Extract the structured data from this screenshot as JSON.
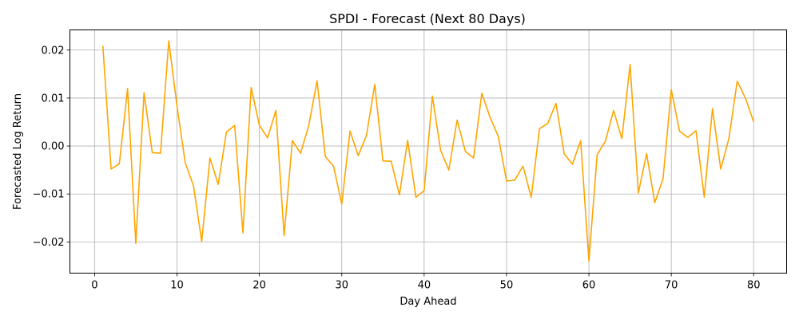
{
  "chart_data": {
    "type": "line",
    "title": "SPDI - Forecast (Next 80 Days)",
    "xlabel": "Day Ahead",
    "ylabel": "Forecasted Log Return",
    "xlim": [
      -3,
      84
    ],
    "ylim": [
      -0.0265,
      0.0242
    ],
    "grid": true,
    "x_ticks": [
      0,
      10,
      20,
      30,
      40,
      50,
      60,
      70,
      80
    ],
    "x_tick_labels": [
      "0",
      "10",
      "20",
      "30",
      "40",
      "50",
      "60",
      "70",
      "80"
    ],
    "y_ticks": [
      -0.02,
      -0.01,
      0.0,
      0.01,
      0.02
    ],
    "y_tick_labels": [
      "−0.02",
      "−0.01",
      "0.00",
      "0.01",
      "0.02"
    ],
    "series": [
      {
        "color": "#ffa500",
        "x": [
          1,
          2,
          3,
          4,
          5,
          6,
          7,
          8,
          9,
          10,
          11,
          12,
          13,
          14,
          15,
          16,
          17,
          18,
          19,
          20,
          21,
          22,
          23,
          24,
          25,
          26,
          27,
          28,
          29,
          30,
          31,
          32,
          33,
          34,
          35,
          36,
          37,
          38,
          39,
          40,
          41,
          42,
          43,
          44,
          45,
          46,
          47,
          48,
          49,
          50,
          51,
          52,
          53,
          54,
          55,
          56,
          57,
          58,
          59,
          60,
          61,
          62,
          63,
          64,
          65,
          66,
          67,
          68,
          69,
          70,
          71,
          72,
          73,
          74,
          75,
          76,
          77,
          78,
          79,
          80
        ],
        "y": [
          0.0209,
          -0.0048,
          -0.0037,
          0.012,
          -0.0203,
          0.0111,
          -0.0014,
          -0.0015,
          0.0219,
          0.0083,
          -0.0035,
          -0.0083,
          -0.0199,
          -0.0025,
          -0.008,
          0.0029,
          0.0043,
          -0.0181,
          0.0122,
          0.0043,
          0.0017,
          0.0074,
          -0.0187,
          0.0011,
          -0.0015,
          0.0043,
          0.0136,
          -0.0022,
          -0.0042,
          -0.0121,
          0.0031,
          -0.002,
          0.0022,
          0.0128,
          -0.0031,
          -0.0032,
          -0.0102,
          0.0012,
          -0.0107,
          -0.0093,
          0.0104,
          -0.0009,
          -0.005,
          0.0054,
          -0.0011,
          -0.0025,
          0.011,
          0.006,
          0.002,
          -0.0073,
          -0.0071,
          -0.0042,
          -0.0107,
          0.0036,
          0.0047,
          0.0089,
          -0.0016,
          -0.0038,
          0.0011,
          -0.024,
          -0.0018,
          0.001,
          0.0074,
          0.0015,
          0.017,
          -0.0098,
          -0.0016,
          -0.0118,
          -0.0068,
          0.0117,
          0.0031,
          0.0018,
          0.0032,
          -0.0107,
          0.0078,
          -0.0048,
          0.0016,
          0.0135,
          0.01,
          0.005
        ]
      }
    ]
  }
}
